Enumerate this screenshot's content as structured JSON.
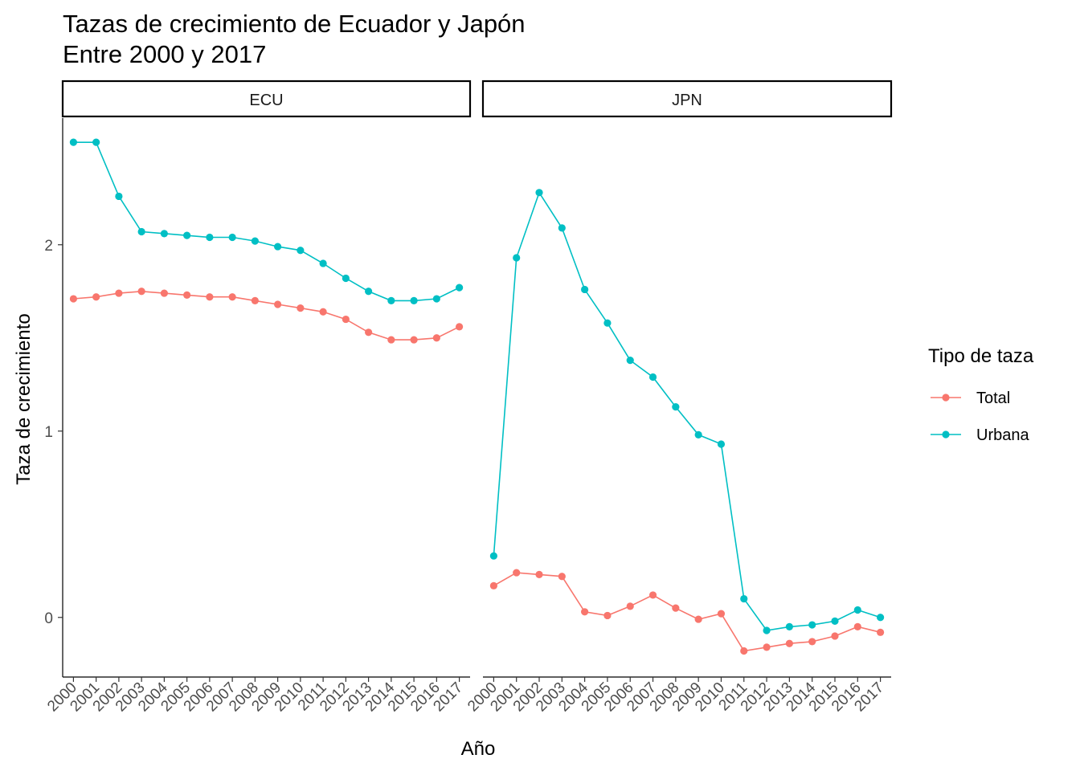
{
  "chart_data": {
    "type": "line",
    "title": "Tazas de crecimiento de Ecuador y Japón",
    "subtitle": "Entre 2000 y 2017",
    "xlabel": "Año",
    "ylabel": "Taza de crecimiento",
    "ylim": [
      -0.32,
      2.68
    ],
    "yticks": [
      0,
      1,
      2
    ],
    "grid": false,
    "legend": {
      "title": "Tipo de taza",
      "placement": "right",
      "entries": [
        "Total",
        "Urbana"
      ]
    },
    "colors": {
      "Total": "#F8766D",
      "Urbana": "#00BFC4"
    },
    "categories": [
      "2000",
      "2001",
      "2002",
      "2003",
      "2004",
      "2005",
      "2006",
      "2007",
      "2008",
      "2009",
      "2010",
      "2011",
      "2012",
      "2013",
      "2014",
      "2015",
      "2016",
      "2017"
    ],
    "panels": [
      {
        "label": "ECU",
        "series": [
          {
            "name": "Total",
            "values": [
              1.71,
              1.72,
              1.74,
              1.75,
              1.74,
              1.73,
              1.72,
              1.72,
              1.7,
              1.68,
              1.66,
              1.64,
              1.6,
              1.53,
              1.49,
              1.49,
              1.5,
              1.56
            ]
          },
          {
            "name": "Urbana",
            "values": [
              2.55,
              2.55,
              2.26,
              2.07,
              2.06,
              2.05,
              2.04,
              2.04,
              2.02,
              1.99,
              1.97,
              1.9,
              1.82,
              1.75,
              1.7,
              1.7,
              1.71,
              1.77
            ]
          }
        ]
      },
      {
        "label": "JPN",
        "series": [
          {
            "name": "Total",
            "values": [
              0.17,
              0.24,
              0.23,
              0.22,
              0.03,
              0.01,
              0.06,
              0.12,
              0.05,
              -0.01,
              0.02,
              -0.18,
              -0.16,
              -0.14,
              -0.13,
              -0.1,
              -0.05,
              -0.08
            ]
          },
          {
            "name": "Urbana",
            "values": [
              0.33,
              1.93,
              2.28,
              2.09,
              1.76,
              1.58,
              1.38,
              1.29,
              1.13,
              0.98,
              0.93,
              0.1,
              -0.07,
              -0.05,
              -0.04,
              -0.02,
              0.04,
              0.0
            ]
          }
        ]
      }
    ]
  }
}
